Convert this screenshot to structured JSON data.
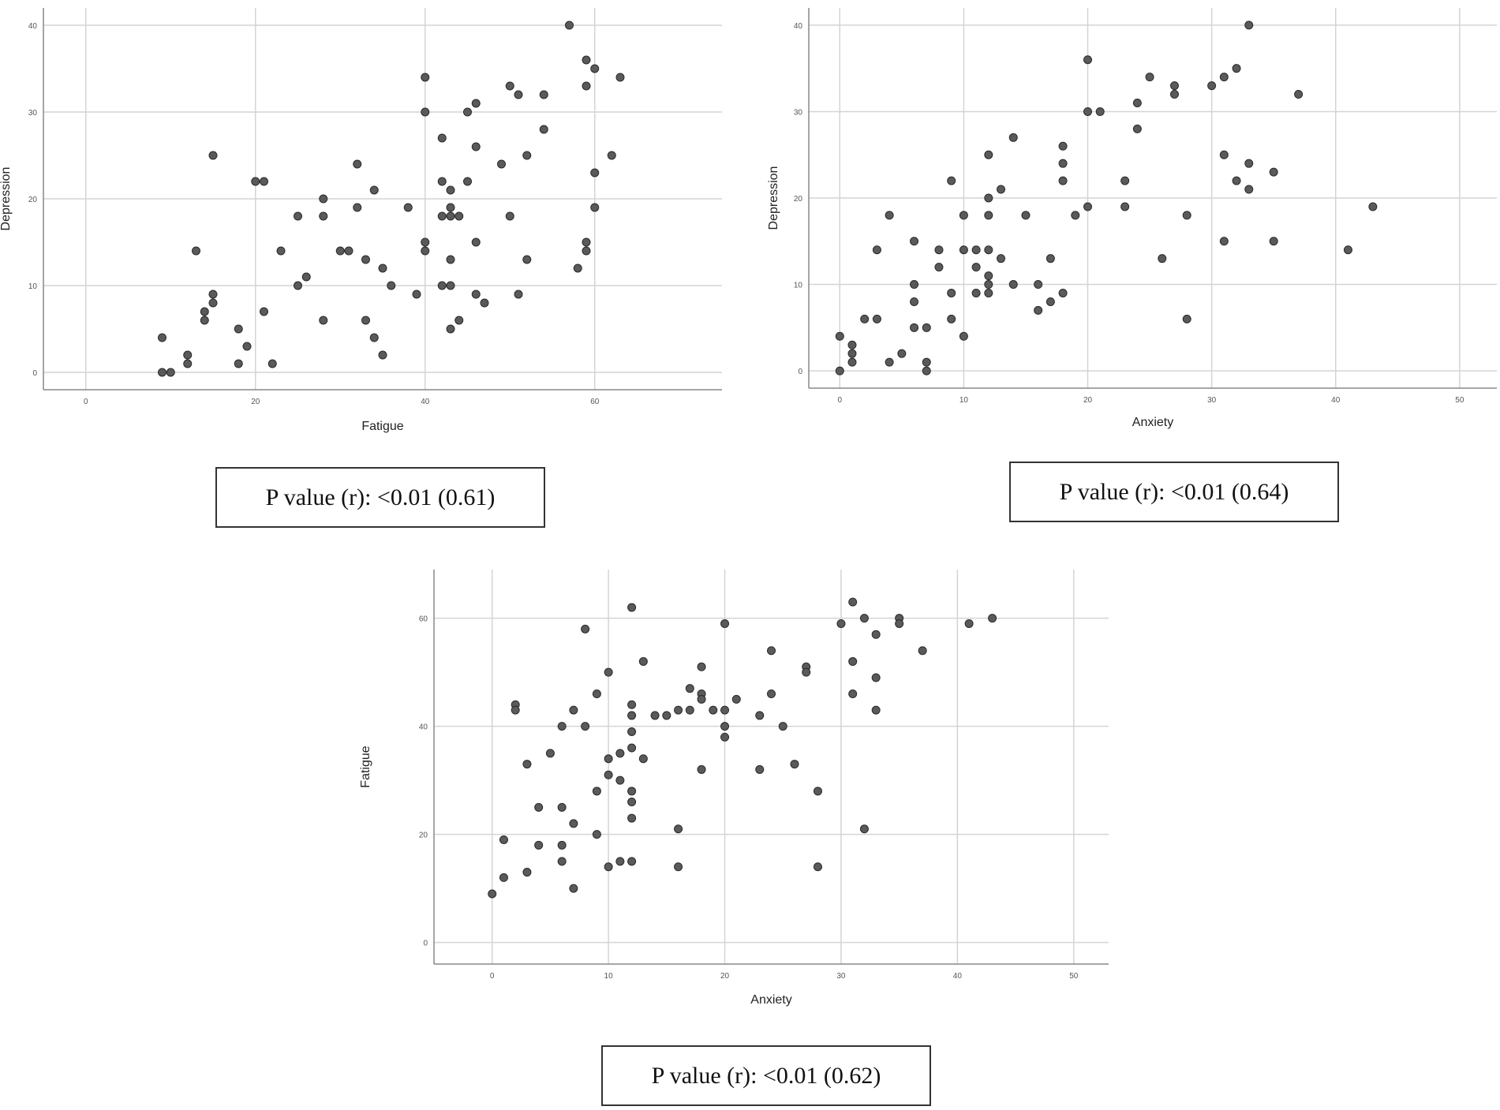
{
  "chart_data": [
    {
      "type": "scatter",
      "xlabel": "Fatigue",
      "ylabel": "Depression",
      "xlim": [
        -5,
        75
      ],
      "ylim": [
        -2,
        42
      ],
      "xticks": [
        0,
        20,
        40,
        60
      ],
      "yticks": [
        0,
        10,
        20,
        30,
        40
      ],
      "grid": true,
      "annotation": "P value (r): <0.01 (0.61)",
      "points": [
        [
          57,
          40
        ],
        [
          59,
          36
        ],
        [
          60,
          35
        ],
        [
          63,
          34
        ],
        [
          59,
          33
        ],
        [
          40,
          34
        ],
        [
          50,
          33
        ],
        [
          51,
          32
        ],
        [
          54,
          32
        ],
        [
          46,
          31
        ],
        [
          45,
          30
        ],
        [
          40,
          30
        ],
        [
          54,
          28
        ],
        [
          42,
          27
        ],
        [
          46,
          26
        ],
        [
          15,
          25
        ],
        [
          52,
          25
        ],
        [
          62,
          25
        ],
        [
          32,
          24
        ],
        [
          49,
          24
        ],
        [
          60,
          23
        ],
        [
          20,
          22
        ],
        [
          21,
          22
        ],
        [
          42,
          22
        ],
        [
          45,
          22
        ],
        [
          34,
          21
        ],
        [
          43,
          21
        ],
        [
          28,
          20
        ],
        [
          32,
          19
        ],
        [
          38,
          19
        ],
        [
          43,
          19
        ],
        [
          60,
          19
        ],
        [
          25,
          18
        ],
        [
          28,
          18
        ],
        [
          42,
          18
        ],
        [
          43,
          18
        ],
        [
          44,
          18
        ],
        [
          50,
          18
        ],
        [
          40,
          15
        ],
        [
          46,
          15
        ],
        [
          59,
          15
        ],
        [
          13,
          14
        ],
        [
          23,
          14
        ],
        [
          30,
          14
        ],
        [
          31,
          14
        ],
        [
          40,
          14
        ],
        [
          59,
          14
        ],
        [
          33,
          13
        ],
        [
          43,
          13
        ],
        [
          52,
          13
        ],
        [
          58,
          12
        ],
        [
          35,
          12
        ],
        [
          26,
          11
        ],
        [
          25,
          10
        ],
        [
          36,
          10
        ],
        [
          42,
          10
        ],
        [
          43,
          10
        ],
        [
          15,
          9
        ],
        [
          39,
          9
        ],
        [
          46,
          9
        ],
        [
          51,
          9
        ],
        [
          15,
          8
        ],
        [
          47,
          8
        ],
        [
          14,
          7
        ],
        [
          21,
          7
        ],
        [
          14,
          6
        ],
        [
          28,
          6
        ],
        [
          33,
          6
        ],
        [
          44,
          6
        ],
        [
          18,
          5
        ],
        [
          43,
          5
        ],
        [
          9,
          4
        ],
        [
          34,
          4
        ],
        [
          19,
          3
        ],
        [
          12,
          2
        ],
        [
          35,
          2
        ],
        [
          12,
          1
        ],
        [
          18,
          1
        ],
        [
          22,
          1
        ],
        [
          9,
          0
        ],
        [
          10,
          0
        ]
      ]
    },
    {
      "type": "scatter",
      "xlabel": "Anxiety",
      "ylabel": "Depression",
      "xlim": [
        -2.5,
        53
      ],
      "ylim": [
        -2,
        42
      ],
      "xticks": [
        0,
        10,
        20,
        30,
        40,
        50
      ],
      "yticks": [
        0,
        10,
        20,
        30,
        40
      ],
      "grid": true,
      "annotation": "P value (r): <0.01 (0.64)",
      "points": [
        [
          33,
          40
        ],
        [
          20,
          36
        ],
        [
          32,
          35
        ],
        [
          25,
          34
        ],
        [
          31,
          34
        ],
        [
          27,
          33
        ],
        [
          30,
          33
        ],
        [
          27,
          32
        ],
        [
          37,
          32
        ],
        [
          24,
          31
        ],
        [
          20,
          30
        ],
        [
          21,
          30
        ],
        [
          24,
          28
        ],
        [
          14,
          27
        ],
        [
          18,
          26
        ],
        [
          12,
          25
        ],
        [
          31,
          25
        ],
        [
          18,
          24
        ],
        [
          33,
          24
        ],
        [
          35,
          23
        ],
        [
          9,
          22
        ],
        [
          18,
          22
        ],
        [
          23,
          22
        ],
        [
          32,
          22
        ],
        [
          13,
          21
        ],
        [
          33,
          21
        ],
        [
          12,
          20
        ],
        [
          20,
          19
        ],
        [
          23,
          19
        ],
        [
          43,
          19
        ],
        [
          4,
          18
        ],
        [
          10,
          18
        ],
        [
          12,
          18
        ],
        [
          15,
          18
        ],
        [
          19,
          18
        ],
        [
          28,
          18
        ],
        [
          6,
          15
        ],
        [
          31,
          15
        ],
        [
          35,
          15
        ],
        [
          3,
          14
        ],
        [
          8,
          14
        ],
        [
          10,
          14
        ],
        [
          11,
          14
        ],
        [
          12,
          14
        ],
        [
          41,
          14
        ],
        [
          13,
          13
        ],
        [
          17,
          13
        ],
        [
          26,
          13
        ],
        [
          8,
          12
        ],
        [
          11,
          12
        ],
        [
          12,
          11
        ],
        [
          6,
          10
        ],
        [
          12,
          10
        ],
        [
          14,
          10
        ],
        [
          16,
          10
        ],
        [
          9,
          9
        ],
        [
          11,
          9
        ],
        [
          12,
          9
        ],
        [
          18,
          9
        ],
        [
          6,
          8
        ],
        [
          17,
          8
        ],
        [
          16,
          7
        ],
        [
          2,
          6
        ],
        [
          3,
          6
        ],
        [
          9,
          6
        ],
        [
          28,
          6
        ],
        [
          6,
          5
        ],
        [
          7,
          5
        ],
        [
          0,
          4
        ],
        [
          10,
          4
        ],
        [
          1,
          3
        ],
        [
          1,
          2
        ],
        [
          5,
          2
        ],
        [
          1,
          1
        ],
        [
          4,
          1
        ],
        [
          7,
          1
        ],
        [
          0,
          0
        ],
        [
          7,
          0
        ]
      ]
    },
    {
      "type": "scatter",
      "xlabel": "Anxiety",
      "ylabel": "Fatigue",
      "xlim": [
        -5,
        53
      ],
      "ylim": [
        -4,
        69
      ],
      "xticks": [
        0,
        10,
        20,
        30,
        40,
        50
      ],
      "yticks": [
        0,
        20,
        40,
        60
      ],
      "grid": true,
      "annotation": "P value (r): <0.01 (0.62)",
      "points": [
        [
          31,
          63
        ],
        [
          12,
          62
        ],
        [
          32,
          60
        ],
        [
          35,
          60
        ],
        [
          43,
          60
        ],
        [
          20,
          59
        ],
        [
          30,
          59
        ],
        [
          35,
          59
        ],
        [
          41,
          59
        ],
        [
          8,
          58
        ],
        [
          33,
          57
        ],
        [
          24,
          54
        ],
        [
          37,
          54
        ],
        [
          13,
          52
        ],
        [
          31,
          52
        ],
        [
          18,
          51
        ],
        [
          27,
          51
        ],
        [
          10,
          50
        ],
        [
          27,
          50
        ],
        [
          33,
          49
        ],
        [
          17,
          47
        ],
        [
          9,
          46
        ],
        [
          18,
          46
        ],
        [
          24,
          46
        ],
        [
          31,
          46
        ],
        [
          18,
          45
        ],
        [
          21,
          45
        ],
        [
          2,
          44
        ],
        [
          12,
          44
        ],
        [
          2,
          43
        ],
        [
          7,
          43
        ],
        [
          16,
          43
        ],
        [
          17,
          43
        ],
        [
          19,
          43
        ],
        [
          20,
          43
        ],
        [
          33,
          43
        ],
        [
          12,
          42
        ],
        [
          14,
          42
        ],
        [
          15,
          42
        ],
        [
          23,
          42
        ],
        [
          6,
          40
        ],
        [
          8,
          40
        ],
        [
          20,
          40
        ],
        [
          25,
          40
        ],
        [
          12,
          39
        ],
        [
          20,
          38
        ],
        [
          12,
          36
        ],
        [
          5,
          35
        ],
        [
          11,
          35
        ],
        [
          10,
          34
        ],
        [
          13,
          34
        ],
        [
          3,
          33
        ],
        [
          26,
          33
        ],
        [
          18,
          32
        ],
        [
          23,
          32
        ],
        [
          10,
          31
        ],
        [
          11,
          30
        ],
        [
          9,
          28
        ],
        [
          12,
          28
        ],
        [
          28,
          28
        ],
        [
          12,
          26
        ],
        [
          4,
          25
        ],
        [
          6,
          25
        ],
        [
          12,
          23
        ],
        [
          7,
          22
        ],
        [
          16,
          21
        ],
        [
          32,
          21
        ],
        [
          9,
          20
        ],
        [
          1,
          19
        ],
        [
          4,
          18
        ],
        [
          6,
          18
        ],
        [
          6,
          15
        ],
        [
          11,
          15
        ],
        [
          12,
          15
        ],
        [
          10,
          14
        ],
        [
          16,
          14
        ],
        [
          28,
          14
        ],
        [
          3,
          13
        ],
        [
          1,
          12
        ],
        [
          7,
          10
        ],
        [
          0,
          9
        ]
      ]
    }
  ]
}
